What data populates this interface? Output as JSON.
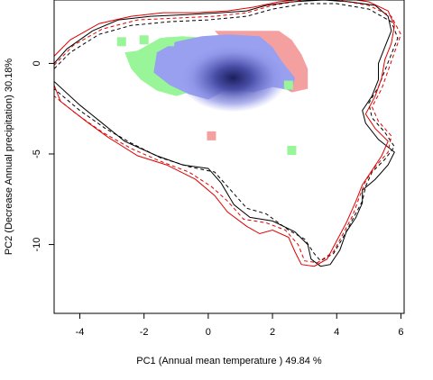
{
  "chart_data": {
    "type": "contour-density",
    "title": "",
    "xlabel": "PC1 (Annual mean temperature ) 49.84 %",
    "ylabel": "PC2 (Decrease Annual precipitation) 30.18%",
    "xlim": [
      -4.8,
      6.1
    ],
    "ylim": [
      -13.8,
      3.5
    ],
    "x_ticks": [
      -4,
      -2,
      0,
      2,
      4,
      6
    ],
    "y_ticks": [
      0,
      -5,
      -10
    ],
    "x_tick_labels": [
      "-4",
      "-2",
      "0",
      "2",
      "4",
      "6"
    ],
    "y_tick_labels": [
      "0",
      "-5",
      "-10"
    ],
    "grid": false,
    "legend": "none",
    "colors": {
      "overlap_density": "#1b1f5e",
      "overlap_light": "#9aa0f0",
      "only_first": "#98f598",
      "only_second": "#f5a0a0",
      "contour_first": "#000000",
      "contour_second": "#e00000"
    },
    "density_peak": [
      1.0,
      -1.0
    ],
    "region_second_only": [
      [
        0.2,
        1.8
      ],
      [
        2.2,
        1.8
      ],
      [
        2.6,
        1.3
      ],
      [
        2.9,
        0.5
      ],
      [
        3.1,
        -0.3
      ],
      [
        3.1,
        -1.4
      ],
      [
        2.6,
        -1.6
      ],
      [
        2.3,
        -1.3
      ],
      [
        2.1,
        -0.8
      ],
      [
        1.5,
        0.5
      ],
      [
        0.5,
        1.2
      ]
    ],
    "region_first_only": [
      [
        -2.6,
        0.6
      ],
      [
        -2.2,
        0.7
      ],
      [
        -1.5,
        1.4
      ],
      [
        -0.8,
        1.5
      ],
      [
        0.0,
        1.4
      ],
      [
        -0.3,
        0.0
      ],
      [
        -0.6,
        -0.8
      ],
      [
        -0.4,
        -1.5
      ],
      [
        -1.0,
        -1.8
      ],
      [
        -1.6,
        -1.5
      ],
      [
        -2.1,
        -0.9
      ],
      [
        -2.4,
        -0.3
      ]
    ],
    "region_overlap": [
      [
        -1.6,
        0.6
      ],
      [
        -1.0,
        1.2
      ],
      [
        -0.2,
        1.5
      ],
      [
        0.6,
        1.6
      ],
      [
        1.6,
        1.5
      ],
      [
        2.0,
        0.9
      ],
      [
        2.3,
        0.1
      ],
      [
        2.7,
        -0.8
      ],
      [
        2.6,
        -1.5
      ],
      [
        2.0,
        -1.3
      ],
      [
        1.4,
        -1.6
      ],
      [
        0.6,
        -1.4
      ],
      [
        0.0,
        -2.0
      ],
      [
        -0.6,
        -1.7
      ],
      [
        -1.2,
        -1.2
      ],
      [
        -1.7,
        -0.5
      ]
    ],
    "scatter_cells": [
      {
        "x": -2.7,
        "y": 1.2,
        "group": "first"
      },
      {
        "x": -2.0,
        "y": 1.3,
        "group": "first"
      },
      {
        "x": -1.2,
        "y": 1.2,
        "group": "first"
      },
      {
        "x": 2.5,
        "y": -1.2,
        "group": "first"
      },
      {
        "x": 2.6,
        "y": -4.8,
        "group": "first"
      },
      {
        "x": 0.1,
        "y": -4.0,
        "group": "second"
      }
    ],
    "series": [
      {
        "color": "#000000",
        "dash": "solid",
        "points": [
          [
            -4.8,
            0.0
          ],
          [
            -4.4,
            0.8
          ],
          [
            -3.6,
            1.8
          ],
          [
            -2.8,
            2.4
          ],
          [
            -1.8,
            2.6
          ],
          [
            -0.6,
            2.7
          ],
          [
            0.4,
            2.8
          ],
          [
            1.2,
            2.9
          ],
          [
            1.8,
            3.2
          ],
          [
            2.6,
            3.4
          ],
          [
            3.6,
            3.5
          ],
          [
            4.4,
            3.4
          ],
          [
            5.2,
            3.2
          ],
          [
            5.6,
            2.6
          ],
          [
            5.7,
            1.8
          ],
          [
            5.5,
            0.9
          ],
          [
            5.3,
            0.0
          ],
          [
            5.3,
            -0.9
          ],
          [
            5.1,
            -1.8
          ],
          [
            4.8,
            -2.6
          ],
          [
            4.9,
            -3.3
          ],
          [
            5.3,
            -4.2
          ],
          [
            5.8,
            -4.9
          ],
          [
            5.6,
            -5.6
          ],
          [
            5.2,
            -6.4
          ],
          [
            4.8,
            -7.0
          ],
          [
            4.8,
            -7.7
          ],
          [
            4.6,
            -8.5
          ],
          [
            4.3,
            -9.3
          ],
          [
            4.1,
            -10.3
          ],
          [
            3.8,
            -11.1
          ],
          [
            3.5,
            -11.2
          ],
          [
            3.2,
            -10.8
          ],
          [
            3.1,
            -10.0
          ],
          [
            2.7,
            -9.3
          ],
          [
            2.0,
            -8.7
          ],
          [
            1.3,
            -8.5
          ],
          [
            0.8,
            -7.8
          ],
          [
            0.4,
            -6.6
          ],
          [
            0.0,
            -5.8
          ],
          [
            -0.8,
            -5.6
          ],
          [
            -1.6,
            -5.1
          ],
          [
            -2.6,
            -4.3
          ],
          [
            -3.3,
            -3.3
          ],
          [
            -4.0,
            -2.3
          ],
          [
            -4.8,
            -1.0
          ]
        ]
      },
      {
        "color": "#000000",
        "dash": "4,3",
        "points": [
          [
            -4.8,
            -0.3
          ],
          [
            -4.3,
            0.6
          ],
          [
            -3.4,
            1.6
          ],
          [
            -2.4,
            2.1
          ],
          [
            -1.2,
            2.3
          ],
          [
            0.0,
            2.4
          ],
          [
            1.2,
            2.6
          ],
          [
            2.0,
            3.0
          ],
          [
            3.0,
            3.3
          ],
          [
            4.0,
            3.3
          ],
          [
            5.0,
            3.0
          ],
          [
            5.7,
            2.3
          ],
          [
            5.9,
            1.4
          ],
          [
            5.7,
            0.5
          ],
          [
            5.5,
            -0.4
          ],
          [
            5.3,
            -1.3
          ],
          [
            5.0,
            -2.2
          ],
          [
            5.1,
            -3.0
          ],
          [
            5.5,
            -3.8
          ],
          [
            5.8,
            -4.6
          ],
          [
            5.5,
            -5.3
          ],
          [
            5.1,
            -6.0
          ],
          [
            4.9,
            -6.8
          ],
          [
            4.8,
            -7.6
          ],
          [
            4.5,
            -8.6
          ],
          [
            4.2,
            -9.6
          ],
          [
            3.9,
            -10.5
          ],
          [
            3.5,
            -10.9
          ],
          [
            3.3,
            -10.5
          ],
          [
            3.0,
            -9.7
          ],
          [
            2.5,
            -9.2
          ],
          [
            1.8,
            -8.3
          ],
          [
            1.2,
            -8.0
          ],
          [
            0.7,
            -7.0
          ],
          [
            0.2,
            -6.0
          ],
          [
            -0.6,
            -5.7
          ],
          [
            -1.5,
            -5.2
          ],
          [
            -2.4,
            -4.4
          ],
          [
            -3.2,
            -3.6
          ],
          [
            -4.0,
            -2.6
          ],
          [
            -4.8,
            -1.4
          ]
        ]
      },
      {
        "color": "#e00000",
        "dash": "solid",
        "points": [
          [
            -4.8,
            0.4
          ],
          [
            -4.3,
            1.3
          ],
          [
            -3.4,
            2.2
          ],
          [
            -2.4,
            2.6
          ],
          [
            -1.4,
            2.8
          ],
          [
            -0.4,
            2.8
          ],
          [
            0.6,
            2.9
          ],
          [
            1.4,
            3.1
          ],
          [
            2.2,
            3.4
          ],
          [
            3.2,
            3.6
          ],
          [
            4.2,
            3.6
          ],
          [
            5.0,
            3.4
          ],
          [
            5.6,
            2.9
          ],
          [
            5.8,
            2.1
          ],
          [
            5.7,
            1.1
          ],
          [
            5.5,
            0.2
          ],
          [
            5.4,
            -0.8
          ],
          [
            5.2,
            -1.8
          ],
          [
            4.9,
            -2.8
          ],
          [
            5.2,
            -3.6
          ],
          [
            5.6,
            -4.3
          ],
          [
            5.4,
            -5.1
          ],
          [
            5.1,
            -5.9
          ],
          [
            4.8,
            -6.7
          ],
          [
            4.6,
            -7.6
          ],
          [
            4.3,
            -8.8
          ],
          [
            4.0,
            -9.8
          ],
          [
            3.7,
            -10.8
          ],
          [
            3.3,
            -11.2
          ],
          [
            2.9,
            -11.1
          ],
          [
            2.7,
            -10.4
          ],
          [
            2.5,
            -9.6
          ],
          [
            2.0,
            -9.2
          ],
          [
            1.6,
            -9.4
          ],
          [
            1.2,
            -9.0
          ],
          [
            0.6,
            -8.2
          ],
          [
            0.2,
            -7.3
          ],
          [
            -0.4,
            -6.4
          ],
          [
            -1.3,
            -5.6
          ],
          [
            -2.2,
            -5.1
          ],
          [
            -3.1,
            -4.1
          ],
          [
            -3.8,
            -3.2
          ],
          [
            -4.6,
            -2.1
          ],
          [
            -4.8,
            -1.2
          ]
        ]
      },
      {
        "color": "#e00000",
        "dash": "4,3",
        "points": [
          [
            -4.8,
            -0.1
          ],
          [
            -4.2,
            1.0
          ],
          [
            -3.3,
            1.9
          ],
          [
            -2.2,
            2.4
          ],
          [
            -1.0,
            2.5
          ],
          [
            0.2,
            2.6
          ],
          [
            1.2,
            2.8
          ],
          [
            2.0,
            3.2
          ],
          [
            3.0,
            3.5
          ],
          [
            4.0,
            3.5
          ],
          [
            5.0,
            3.2
          ],
          [
            5.7,
            2.6
          ],
          [
            6.0,
            1.6
          ],
          [
            5.8,
            0.6
          ],
          [
            5.6,
            -0.4
          ],
          [
            5.4,
            -1.4
          ],
          [
            5.1,
            -2.4
          ],
          [
            5.3,
            -3.2
          ],
          [
            5.7,
            -4.0
          ],
          [
            5.6,
            -4.9
          ],
          [
            5.2,
            -5.7
          ],
          [
            4.9,
            -6.5
          ],
          [
            4.7,
            -7.4
          ],
          [
            4.5,
            -8.4
          ],
          [
            4.2,
            -9.4
          ],
          [
            3.9,
            -10.4
          ],
          [
            3.4,
            -11.0
          ],
          [
            3.0,
            -10.9
          ],
          [
            2.8,
            -10.0
          ],
          [
            2.4,
            -9.2
          ],
          [
            1.8,
            -8.8
          ],
          [
            1.1,
            -8.6
          ],
          [
            0.6,
            -7.6
          ],
          [
            0.1,
            -6.8
          ],
          [
            -0.6,
            -6.0
          ],
          [
            -1.5,
            -5.4
          ],
          [
            -2.4,
            -4.7
          ],
          [
            -3.3,
            -3.8
          ],
          [
            -4.1,
            -2.8
          ],
          [
            -4.8,
            -1.8
          ]
        ]
      }
    ]
  }
}
